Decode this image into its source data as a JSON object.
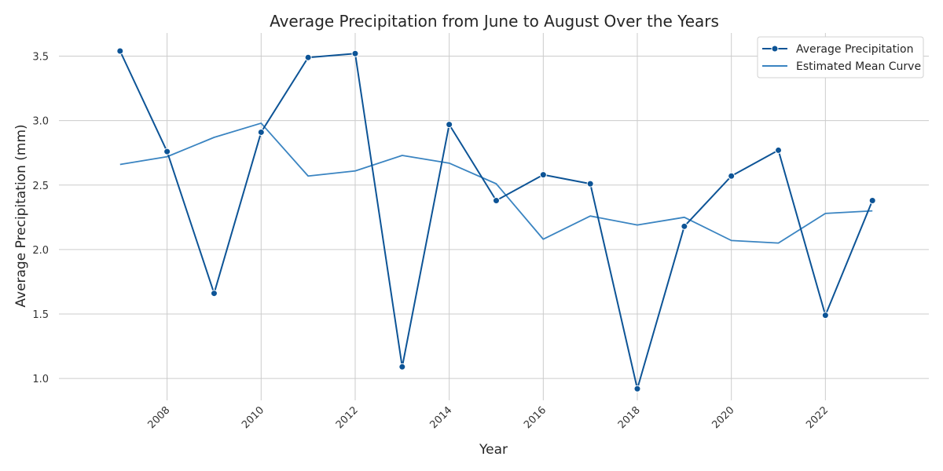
{
  "chart_data": {
    "type": "line",
    "title": "Average Precipitation from June to August Over the Years",
    "xlabel": "Year",
    "ylabel": "Average Precipitation (mm)",
    "x": [
      2007,
      2008,
      2009,
      2010,
      2011,
      2012,
      2013,
      2014,
      2015,
      2016,
      2017,
      2018,
      2019,
      2020,
      2021,
      2022,
      2023
    ],
    "xlim": [
      2005.7,
      2024.2
    ],
    "ylim": [
      0.83,
      3.68
    ],
    "x_ticks": [
      2008,
      2010,
      2012,
      2014,
      2016,
      2018,
      2020,
      2022
    ],
    "y_ticks": [
      1.0,
      1.5,
      2.0,
      2.5,
      3.0,
      3.5
    ],
    "y_tick_labels": [
      "1.0",
      "1.5",
      "2.0",
      "2.5",
      "3.0",
      "3.5"
    ],
    "grid": true,
    "legend_position": "top-right",
    "series": [
      {
        "name": "Average Precipitation",
        "marker": "circle",
        "color": "#0d5496",
        "values": [
          3.54,
          2.76,
          1.66,
          2.91,
          3.49,
          3.52,
          1.09,
          2.97,
          2.38,
          2.58,
          2.51,
          0.92,
          2.18,
          2.57,
          2.77,
          1.49,
          2.38
        ]
      },
      {
        "name": "Estimated Mean Curve",
        "marker": "none",
        "color": "#3a84c1",
        "values": [
          2.66,
          2.72,
          2.87,
          2.98,
          2.57,
          2.61,
          2.73,
          2.67,
          2.51,
          2.08,
          2.26,
          2.19,
          2.25,
          2.07,
          2.05,
          2.28,
          2.3
        ]
      }
    ]
  }
}
